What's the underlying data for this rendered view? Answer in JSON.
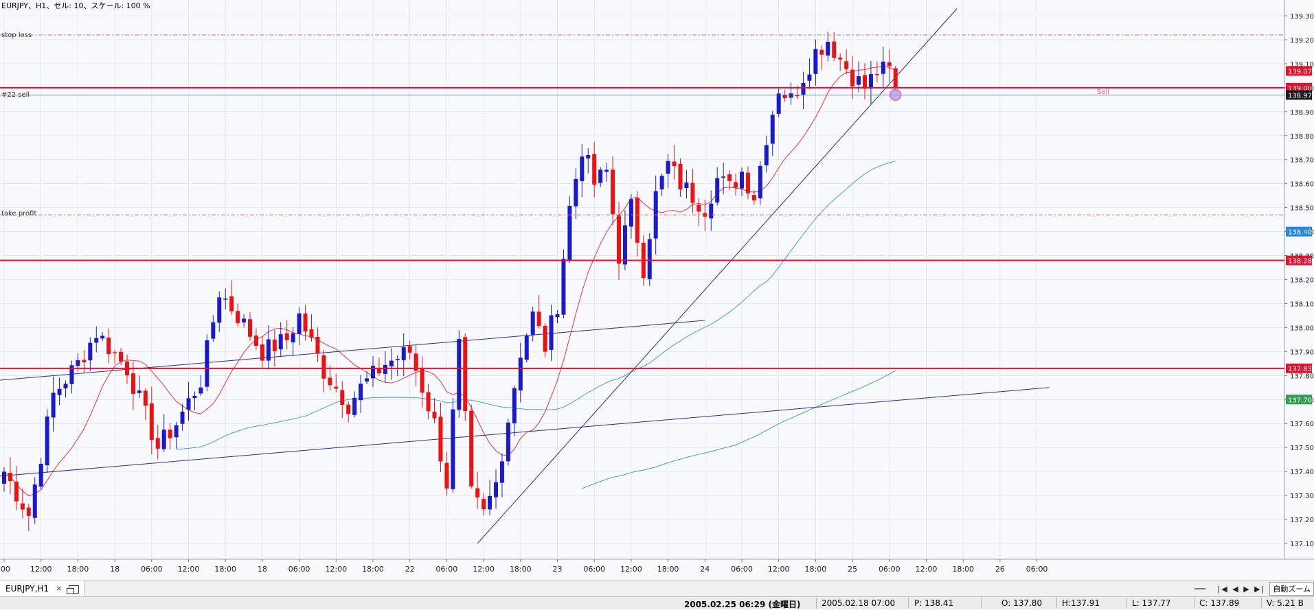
{
  "chart_info": "EURJPY、H1、セル: 10、スケール: 100 %",
  "colors": {
    "bg": "#f7f9fd",
    "bull": "#1a1acc",
    "bear": "#ee1111",
    "grid": "#d8dde8",
    "ma_fast": "#ee3333",
    "ma_mid": "#3ba3e0",
    "ma_slow": "#3cb371",
    "trend": "#2a2aa8",
    "hline": "#e8112d",
    "dash": "#d46a80"
  },
  "line_labels": {
    "stop_loss": "stop loss",
    "order": "#22 sell",
    "take_profit": "take profit",
    "marker": "Sell"
  },
  "price_axis": {
    "ticks": [
      "139.30",
      "139.20",
      "139.10",
      "139.00",
      "138.90",
      "138.80",
      "138.70",
      "138.60",
      "138.50",
      "138.40",
      "138.30",
      "138.20",
      "138.10",
      "138.00",
      "137.90",
      "137.80",
      "137.70",
      "137.60",
      "137.50",
      "137.40",
      "137.30",
      "137.20",
      "137.10"
    ],
    "badges": [
      {
        "text": "139.07",
        "price": 139.07,
        "bg": "#e8112d",
        "fg": "#ffffff"
      },
      {
        "text": "139.00",
        "price": 139.0,
        "bg": "#e8112d",
        "fg": "#ffffff"
      },
      {
        "text": "138.97",
        "price": 138.97,
        "bg": "#1a1a1a",
        "fg": "#ffffff"
      },
      {
        "text": "138.40",
        "price": 138.4,
        "bg": "#1e88e5",
        "fg": "#ffffff"
      },
      {
        "text": "138.28",
        "price": 138.28,
        "bg": "#e8112d",
        "fg": "#ffffff"
      },
      {
        "text": "137.83",
        "price": 137.83,
        "bg": "#e8112d",
        "fg": "#ffffff"
      },
      {
        "text": "137.70",
        "price": 137.7,
        "bg": "#2e9e4f",
        "fg": "#ffffff"
      }
    ]
  },
  "time_axis": [
    {
      "label": ":00",
      "i": 0
    },
    {
      "label": "12:00",
      "i": 6
    },
    {
      "label": "18:00",
      "i": 12
    },
    {
      "label": "18",
      "i": 18
    },
    {
      "label": "06:00",
      "i": 24
    },
    {
      "label": "12:00",
      "i": 30
    },
    {
      "label": "18:00",
      "i": 36
    },
    {
      "label": "18",
      "i": 42
    },
    {
      "label": "06:00",
      "i": 48
    },
    {
      "label": "12:00",
      "i": 54
    },
    {
      "label": "18:00",
      "i": 60
    },
    {
      "label": "22",
      "i": 66
    },
    {
      "label": "06:00",
      "i": 72
    },
    {
      "label": "12:00",
      "i": 78
    },
    {
      "label": "18:00",
      "i": 84
    },
    {
      "label": "23",
      "i": 90
    },
    {
      "label": "06:00",
      "i": 96
    },
    {
      "label": "12:00",
      "i": 102
    },
    {
      "label": "18:00",
      "i": 108
    },
    {
      "label": "24",
      "i": 114
    },
    {
      "label": "06:00",
      "i": 120
    },
    {
      "label": "12:00",
      "i": 126
    },
    {
      "label": "18:00",
      "i": 132
    },
    {
      "label": "25",
      "i": 138
    },
    {
      "label": "06:00",
      "i": 144
    },
    {
      "label": "12:00",
      "i": 150
    },
    {
      "label": "18:00",
      "i": 156
    },
    {
      "label": "26",
      "i": 162
    },
    {
      "label": "06:00",
      "i": 168
    }
  ],
  "chart_data": {
    "type": "candlestick",
    "symbol": "EURJPY",
    "timeframe": "H1",
    "ylim": [
      137.05,
      139.35
    ],
    "levels": {
      "stop_loss": 139.22,
      "order": 139.0,
      "take_profit": 138.47,
      "current": 138.97,
      "line_a": 138.28,
      "line_b": 137.83
    },
    "trendlines": [
      {
        "i1": -1,
        "p1": 137.78,
        "i2": 114,
        "p2": 138.03
      },
      {
        "i1": -1,
        "p1": 137.38,
        "i2": 170,
        "p2": 137.75
      },
      {
        "i1": 77,
        "p1": 137.1,
        "i2": 155,
        "p2": 139.33
      }
    ],
    "waypoints": [
      [
        0,
        137.4
      ],
      [
        4,
        137.22
      ],
      [
        8,
        137.72
      ],
      [
        12,
        137.85
      ],
      [
        15,
        137.98
      ],
      [
        20,
        137.83
      ],
      [
        25,
        137.5
      ],
      [
        28,
        137.6
      ],
      [
        32,
        137.78
      ],
      [
        35,
        138.15
      ],
      [
        38,
        138.05
      ],
      [
        42,
        137.9
      ],
      [
        46,
        137.95
      ],
      [
        48,
        138.05
      ],
      [
        52,
        137.82
      ],
      [
        56,
        137.68
      ],
      [
        58,
        137.75
      ],
      [
        62,
        137.85
      ],
      [
        66,
        137.9
      ],
      [
        68,
        137.75
      ],
      [
        70,
        137.6
      ],
      [
        72,
        137.35
      ],
      [
        74,
        137.92
      ],
      [
        76,
        137.3
      ],
      [
        78,
        137.22
      ],
      [
        80,
        137.35
      ],
      [
        82,
        137.62
      ],
      [
        84,
        137.9
      ],
      [
        86,
        138.05
      ],
      [
        88,
        137.92
      ],
      [
        90,
        138.1
      ],
      [
        92,
        138.5
      ],
      [
        94,
        138.75
      ],
      [
        96,
        138.6
      ],
      [
        98,
        138.65
      ],
      [
        100,
        138.3
      ],
      [
        102,
        138.5
      ],
      [
        104,
        138.25
      ],
      [
        106,
        138.55
      ],
      [
        108,
        138.68
      ],
      [
        110,
        138.6
      ],
      [
        112,
        138.55
      ],
      [
        114,
        138.5
      ],
      [
        116,
        138.62
      ],
      [
        118,
        138.58
      ],
      [
        120,
        138.65
      ],
      [
        122,
        138.55
      ],
      [
        124,
        138.8
      ],
      [
        126,
        139.0
      ],
      [
        128,
        138.95
      ],
      [
        130,
        139.05
      ],
      [
        132,
        139.15
      ],
      [
        134,
        139.2
      ],
      [
        136,
        139.12
      ],
      [
        138,
        139.05
      ],
      [
        140,
        139.0
      ],
      [
        142,
        139.07
      ],
      [
        144,
        139.07
      ],
      [
        145,
        138.99
      ]
    ]
  },
  "bottom_tab": {
    "label": "EURJPY,H1",
    "close": "×"
  },
  "toolbar": {
    "nav": "|◀ ◀ ▶ ▶|",
    "zoom": "自動ズーム"
  },
  "status": {
    "now": "2005.02.25 06:29 (金曜日)",
    "bar_time": "2005.02.18 07:00",
    "price": "P: 138.41",
    "open": "O: 137.80",
    "high": "H:137.91",
    "low": "L: 137.77",
    "close": "C: 137.89",
    "volume": "V: 5.21 B"
  }
}
